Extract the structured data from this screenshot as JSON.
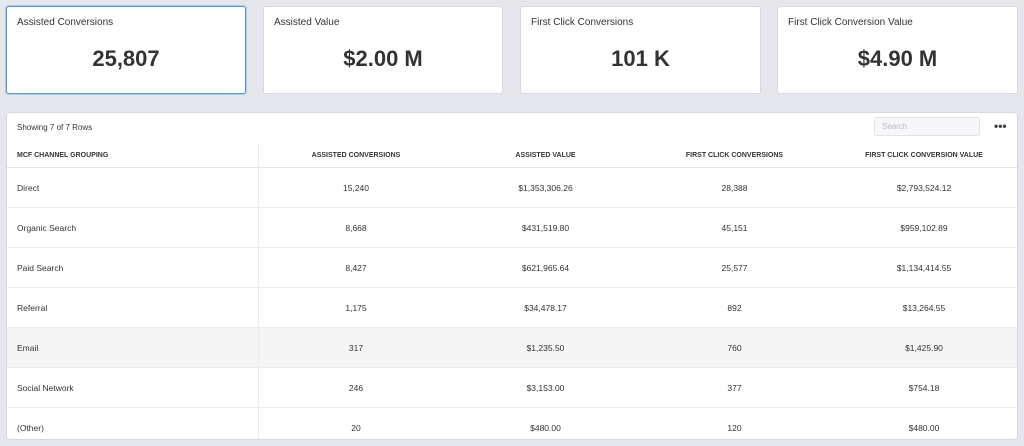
{
  "kpis": [
    {
      "label": "Assisted Conversions",
      "value": "25,807"
    },
    {
      "label": "Assisted Value",
      "value": "$2.00 M"
    },
    {
      "label": "First Click Conversions",
      "value": "101 K"
    },
    {
      "label": "First Click Conversion Value",
      "value": "$4.90 M"
    }
  ],
  "table": {
    "showing": "Showing 7 of 7 Rows",
    "search_placeholder": "Search",
    "more_icon": "more-horizontal-icon",
    "columns": [
      "MCF CHANNEL GROUPING",
      "ASSISTED CONVERSIONS",
      "ASSISTED VALUE",
      "FIRST CLICK CONVERSIONS",
      "FIRST CLICK CONVERSION VALUE"
    ],
    "rows": [
      [
        "Direct",
        "15,240",
        "$1,353,306.26",
        "28,388",
        "$2,793,524.12"
      ],
      [
        "Organic Search",
        "8,668",
        "$431,519.80",
        "45,151",
        "$959,102.89"
      ],
      [
        "Paid Search",
        "8,427",
        "$621,965.64",
        "25,577",
        "$1,134,414.55"
      ],
      [
        "Referral",
        "1,175",
        "$34,478.17",
        "892",
        "$13,264.55"
      ],
      [
        "Email",
        "317",
        "$1,235.50",
        "760",
        "$1,425.90"
      ],
      [
        "Social Network",
        "246",
        "$3,153.00",
        "377",
        "$754.18"
      ],
      [
        "(Other)",
        "20",
        "$480.00",
        "120",
        "$480.00"
      ]
    ]
  },
  "colors": {
    "active_border": "#5b9bd5",
    "page_bg": "#e6e7ec"
  }
}
